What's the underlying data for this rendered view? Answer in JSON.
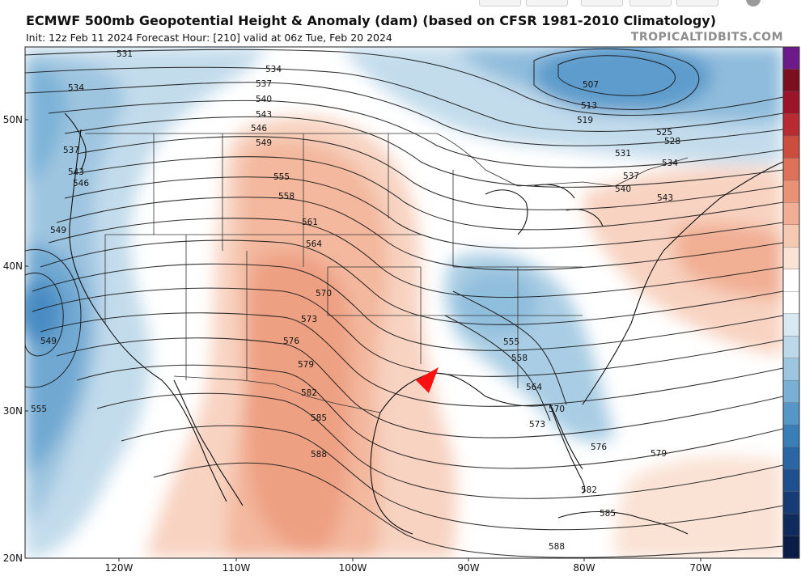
{
  "header": {
    "title": "ECMWF 500mb Geopotential Height & Anomaly (dam) (based on CFSR 1981-2010 Climatology)",
    "subtitle": "Init: 12z Feb 11 2024   Forecast Hour: [210]   valid at 06z Tue, Feb 20 2024",
    "brand": "TROPICALTIDBITS.COM"
  },
  "map": {
    "latitude_labels": [
      "50N",
      "40N",
      "30N",
      "20N"
    ],
    "longitude_labels": [
      "120W",
      "110W",
      "100W",
      "90W",
      "80W",
      "70W"
    ],
    "contour_labels": [
      "531",
      "534",
      "537",
      "540",
      "543",
      "546",
      "549",
      "555",
      "558",
      "561",
      "564",
      "570",
      "573",
      "576",
      "579",
      "582",
      "585",
      "588",
      "507",
      "513",
      "519",
      "525",
      "528",
      "531",
      "534",
      "537",
      "540",
      "543",
      "549",
      "555",
      "555",
      "558",
      "564",
      "570",
      "573",
      "576",
      "579",
      "582",
      "585",
      "588",
      "531",
      "534",
      "537",
      "543",
      "546"
    ],
    "colorbar_colors": [
      "#6e1a8a",
      "#7b0f1e",
      "#9b1428",
      "#b82b31",
      "#cc4c3e",
      "#de7258",
      "#ea9274",
      "#f1ae94",
      "#f6c9b3",
      "#fae2d4",
      "#ffffff",
      "#ffffff",
      "#d8e9f3",
      "#bcd8ea",
      "#9cc6e0",
      "#79b0d5",
      "#5597c7",
      "#3a7eb8",
      "#2a65a4",
      "#1e4f8e",
      "#163b75",
      "#0f2a5c",
      "#0a1d47"
    ],
    "annotation_arrow_color": "#ff1010"
  }
}
